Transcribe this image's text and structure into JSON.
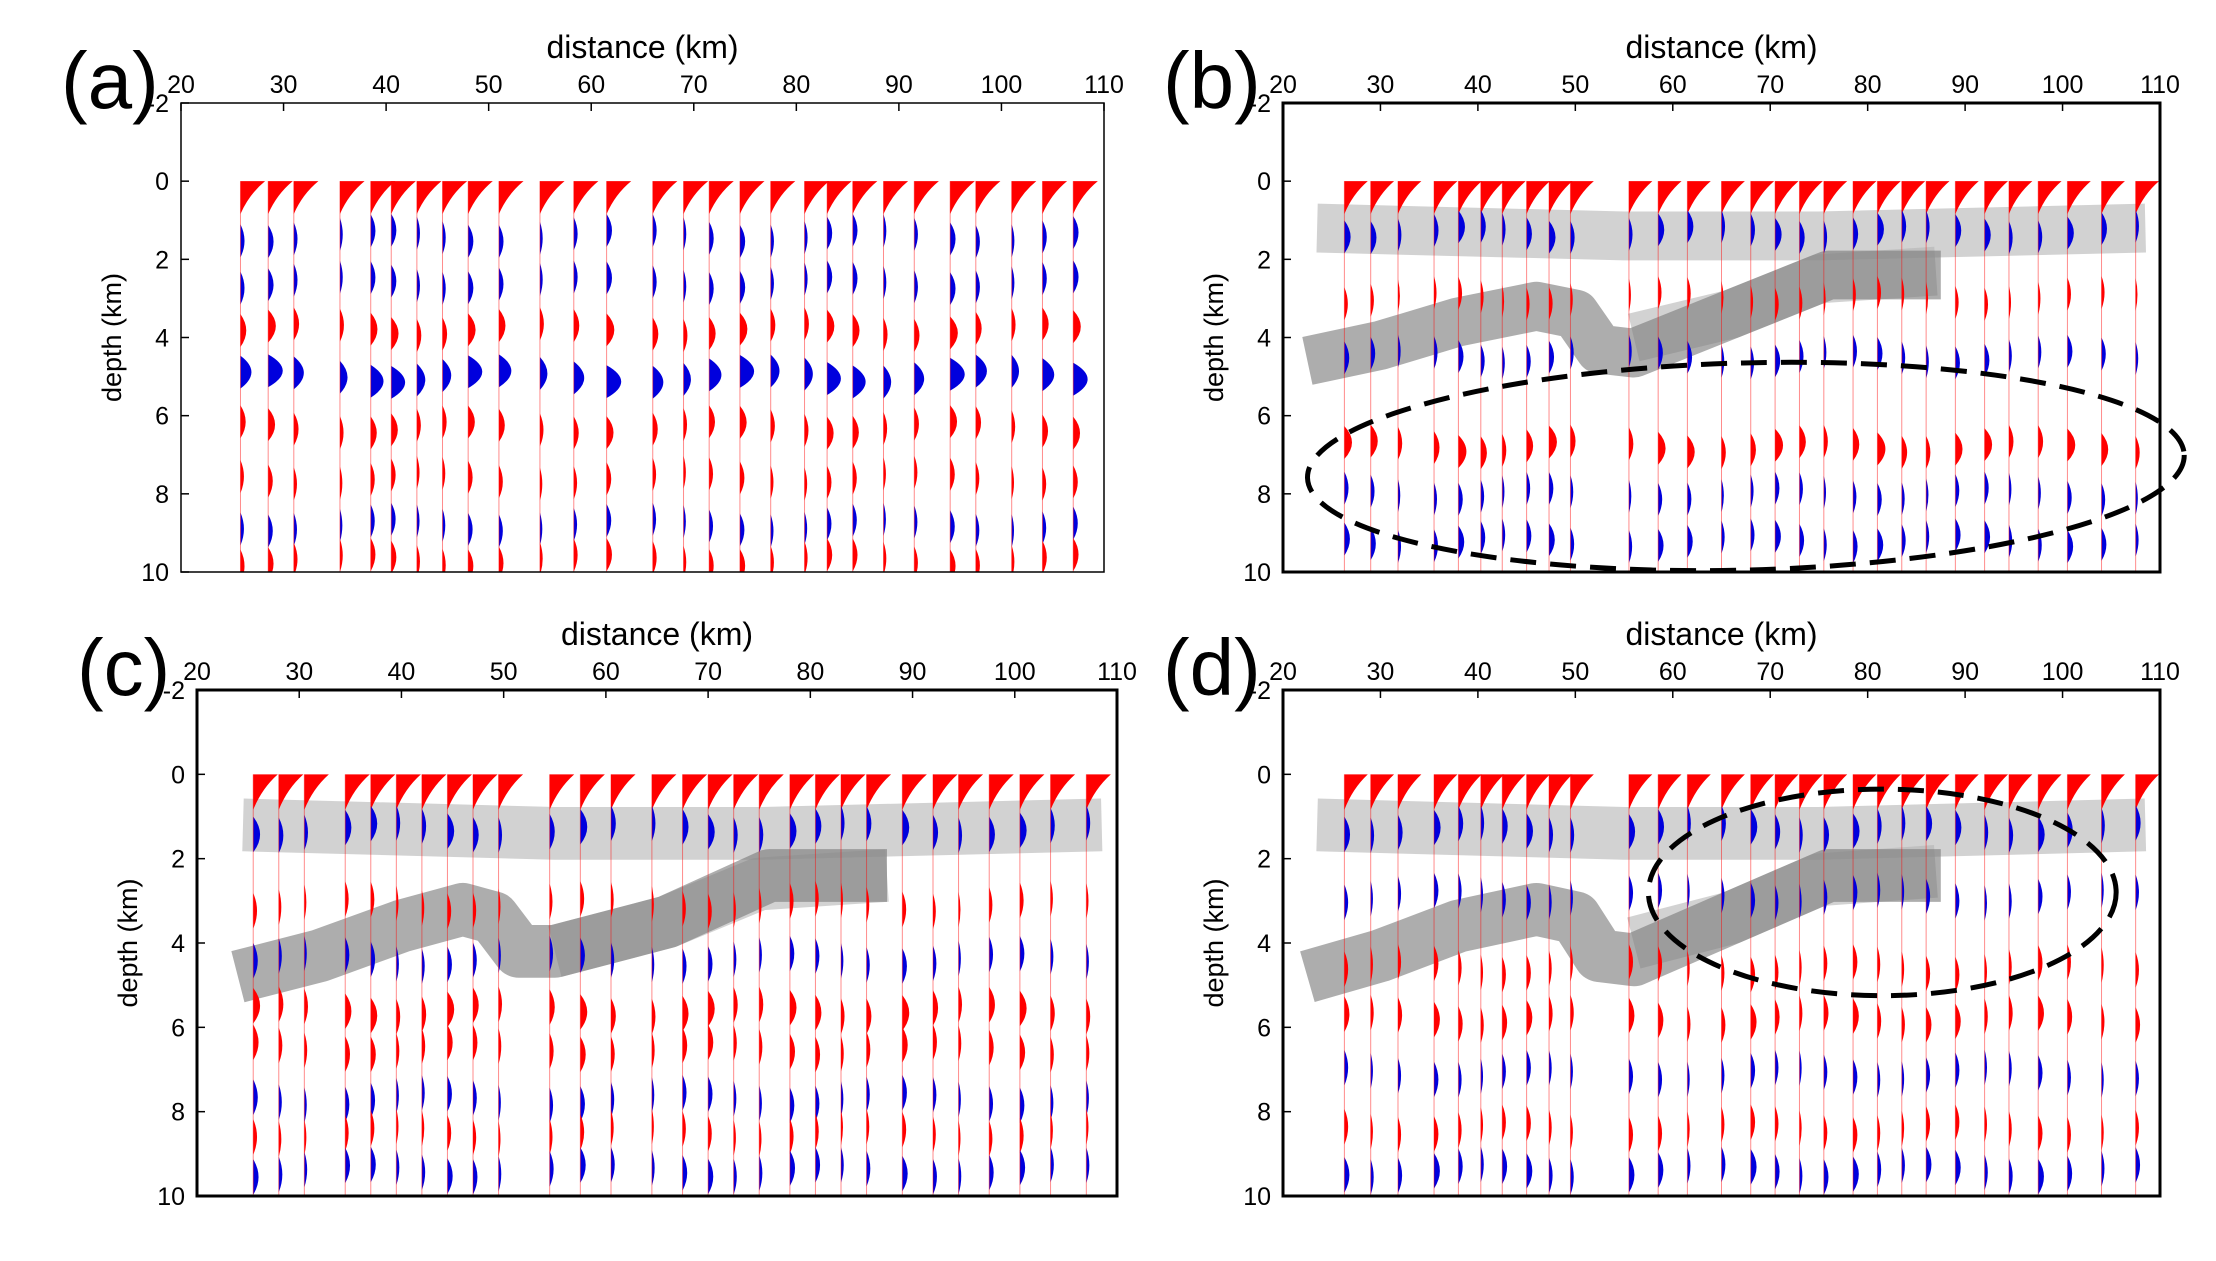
{
  "colors": {
    "positive": "#ff0000",
    "negative": "#0000dd",
    "band_light": "#b4b4b4",
    "band_dark": "#7a7a7a",
    "ellipse": "#000000",
    "axes": "#000000"
  },
  "chart_data": [
    {
      "type": "wiggle",
      "panel_label": "(a)",
      "xlabel": "distance (km)",
      "ylabel": "depth (km)",
      "xlim": [
        20,
        110
      ],
      "ylim": [
        -2,
        10
      ],
      "y_reversed": true,
      "x_ticks": [
        "20",
        "30",
        "40",
        "50",
        "60",
        "70",
        "80",
        "90",
        "100",
        "110"
      ],
      "y_ticks": [
        "-2",
        "0",
        "2",
        "4",
        "6",
        "8",
        "10"
      ],
      "traces_x": [
        25.8,
        28.5,
        31,
        35.5,
        38.5,
        40.5,
        43,
        45.5,
        48,
        51,
        55,
        58.3,
        61.5,
        66,
        69,
        71.5,
        74.5,
        77.5,
        80.8,
        83,
        85.5,
        88.5,
        91.5,
        95,
        97.5,
        101,
        104,
        107
      ],
      "events": [
        {
          "depth": 0.4,
          "amp": 1.0,
          "sign": "positive"
        },
        {
          "depth": 1.4,
          "amp": 0.35,
          "sign": "negative"
        },
        {
          "depth": 2.6,
          "amp": 0.35,
          "sign": "negative"
        },
        {
          "depth": 3.8,
          "amp": 0.5,
          "sign": "positive"
        },
        {
          "depth": 5.0,
          "amp": 0.95,
          "sign": "negative"
        },
        {
          "depth": 6.3,
          "amp": 0.45,
          "sign": "positive"
        },
        {
          "depth": 7.6,
          "amp": 0.3,
          "sign": "positive"
        },
        {
          "depth": 8.8,
          "amp": 0.3,
          "sign": "negative"
        },
        {
          "depth": 9.7,
          "amp": 0.35,
          "sign": "positive"
        }
      ],
      "bands": [],
      "ellipses": []
    },
    {
      "type": "wiggle",
      "panel_label": "(b)",
      "xlabel": "distance (km)",
      "ylabel": "depth (km)",
      "xlim": [
        20,
        110
      ],
      "ylim": [
        -2,
        10
      ],
      "y_reversed": true,
      "x_ticks": [
        "20",
        "30",
        "40",
        "50",
        "60",
        "70",
        "80",
        "90",
        "100",
        "110"
      ],
      "y_ticks": [
        "-2",
        "0",
        "2",
        "4",
        "6",
        "8",
        "10"
      ],
      "traces_x": [
        26.3,
        29,
        31.8,
        35.5,
        38,
        40.3,
        42.5,
        45,
        47.3,
        49.5,
        55.5,
        58.5,
        61.5,
        65,
        68,
        70.5,
        73,
        75.5,
        78.5,
        81,
        83.5,
        86,
        89,
        92,
        94.5,
        97.5,
        100.5,
        104,
        107.5
      ],
      "events": [
        {
          "depth": 0.4,
          "amp": 1.0,
          "sign": "positive"
        },
        {
          "depth": 1.3,
          "amp": 0.45,
          "sign": "negative"
        },
        {
          "depth": 3.0,
          "amp": 0.25,
          "sign": "positive"
        },
        {
          "depth": 4.5,
          "amp": 0.35,
          "sign": "negative"
        },
        {
          "depth": 6.8,
          "amp": 0.55,
          "sign": "positive"
        },
        {
          "depth": 8.0,
          "amp": 0.3,
          "sign": "negative"
        },
        {
          "depth": 9.2,
          "amp": 0.4,
          "sign": "negative"
        }
      ],
      "bands": [
        {
          "tone": "light",
          "points": [
            [
              23.5,
              1.2
            ],
            [
              55,
              1.4
            ],
            [
              75,
              1.4
            ],
            [
              108.5,
              1.2
            ]
          ]
        },
        {
          "tone": "light",
          "points": [
            [
              56,
              4.0
            ],
            [
              66,
              3.4
            ],
            [
              75,
              2.5
            ],
            [
              87,
              2.3
            ]
          ]
        },
        {
          "tone": "dark",
          "points": [
            [
              22.5,
              4.6
            ],
            [
              30,
              4.2
            ],
            [
              38,
              3.6
            ],
            [
              46,
              3.2
            ],
            [
              50,
              3.4
            ],
            [
              52.5,
              4.3
            ],
            [
              56,
              4.4
            ],
            [
              66,
              3.4
            ],
            [
              76,
              2.4
            ],
            [
              87.5,
              2.4
            ]
          ]
        }
      ],
      "ellipses": [
        {
          "cx": 67.5,
          "cy": 7.3,
          "rx": 45,
          "ry": 2.65,
          "rot": -1.5
        }
      ]
    },
    {
      "type": "wiggle",
      "panel_label": "(c)",
      "xlabel": "distance (km)",
      "ylabel": "depth (km)",
      "xlim": [
        20,
        110
      ],
      "ylim": [
        -2,
        10
      ],
      "y_reversed": true,
      "x_ticks": [
        "20",
        "30",
        "40",
        "50",
        "60",
        "70",
        "80",
        "90",
        "100",
        "110"
      ],
      "y_ticks": [
        "-2",
        "0",
        "2",
        "4",
        "6",
        "8",
        "10"
      ],
      "traces_x": [
        25.5,
        28,
        30.5,
        34.5,
        37,
        39.5,
        42,
        44.5,
        47,
        49.5,
        54.5,
        57.5,
        60.5,
        64.5,
        67.5,
        70,
        72.5,
        75,
        78,
        80.5,
        83,
        85.5,
        89,
        92,
        94.5,
        97.5,
        100.5,
        103.5,
        107
      ],
      "events": [
        {
          "depth": 0.4,
          "amp": 1.0,
          "sign": "positive"
        },
        {
          "depth": 1.3,
          "amp": 0.45,
          "sign": "negative"
        },
        {
          "depth": 3.1,
          "amp": 0.25,
          "sign": "positive"
        },
        {
          "depth": 4.4,
          "amp": 0.3,
          "sign": "negative"
        },
        {
          "depth": 5.6,
          "amp": 0.45,
          "sign": "positive"
        },
        {
          "depth": 6.5,
          "amp": 0.35,
          "sign": "positive"
        },
        {
          "depth": 7.7,
          "amp": 0.3,
          "sign": "negative"
        },
        {
          "depth": 8.5,
          "amp": 0.25,
          "sign": "positive"
        },
        {
          "depth": 9.4,
          "amp": 0.35,
          "sign": "negative"
        }
      ],
      "bands": [
        {
          "tone": "light",
          "points": [
            [
              24.5,
              1.2
            ],
            [
              55,
              1.4
            ],
            [
              75,
              1.4
            ],
            [
              108.5,
              1.2
            ]
          ]
        },
        {
          "tone": "light",
          "points": [
            [
              55,
              4.2
            ],
            [
              66,
              3.5
            ],
            [
              75,
              2.6
            ],
            [
              87.5,
              2.4
            ]
          ]
        },
        {
          "tone": "dark",
          "points": [
            [
              24,
              4.8
            ],
            [
              32,
              4.3
            ],
            [
              40,
              3.6
            ],
            [
              46,
              3.2
            ],
            [
              49,
              3.4
            ],
            [
              51.5,
              4.2
            ],
            [
              55,
              4.2
            ],
            [
              66,
              3.5
            ],
            [
              76,
              2.4
            ],
            [
              87.5,
              2.4
            ]
          ]
        }
      ],
      "ellipses": []
    },
    {
      "type": "wiggle",
      "panel_label": "(d)",
      "xlabel": "distance (km)",
      "ylabel": "depth (km)",
      "xlim": [
        20,
        110
      ],
      "ylim": [
        -2,
        10
      ],
      "y_reversed": true,
      "x_ticks": [
        "20",
        "30",
        "40",
        "50",
        "60",
        "70",
        "80",
        "90",
        "100",
        "110"
      ],
      "y_ticks": [
        "-2",
        "0",
        "2",
        "4",
        "6",
        "8",
        "10"
      ],
      "traces_x": [
        26.3,
        29,
        31.8,
        35.5,
        38,
        40.3,
        42.5,
        45,
        47.3,
        49.5,
        55.5,
        58.5,
        61.5,
        65,
        68,
        70.5,
        73,
        75.5,
        78.5,
        81,
        83.5,
        86,
        89,
        92,
        94.5,
        97.5,
        100.5,
        104,
        107.5
      ],
      "events": [
        {
          "depth": 0.4,
          "amp": 1.0,
          "sign": "positive"
        },
        {
          "depth": 1.3,
          "amp": 0.45,
          "sign": "negative"
        },
        {
          "depth": 2.9,
          "amp": 0.3,
          "sign": "negative"
        },
        {
          "depth": 4.6,
          "amp": 0.3,
          "sign": "positive"
        },
        {
          "depth": 5.8,
          "amp": 0.4,
          "sign": "positive"
        },
        {
          "depth": 7.1,
          "amp": 0.3,
          "sign": "negative"
        },
        {
          "depth": 8.4,
          "amp": 0.3,
          "sign": "positive"
        },
        {
          "depth": 9.4,
          "amp": 0.4,
          "sign": "negative"
        }
      ],
      "bands": [
        {
          "tone": "light",
          "points": [
            [
              23.5,
              1.2
            ],
            [
              55,
              1.4
            ],
            [
              75,
              1.4
            ],
            [
              108.5,
              1.2
            ]
          ]
        },
        {
          "tone": "light",
          "points": [
            [
              56,
              4.0
            ],
            [
              66,
              3.4
            ],
            [
              75,
              2.5
            ],
            [
              87,
              2.3
            ]
          ]
        },
        {
          "tone": "dark",
          "points": [
            [
              22.5,
              4.8
            ],
            [
              30,
              4.3
            ],
            [
              38,
              3.6
            ],
            [
              46,
              3.2
            ],
            [
              50,
              3.4
            ],
            [
              52.5,
              4.3
            ],
            [
              56,
              4.4
            ],
            [
              66,
              3.4
            ],
            [
              76,
              2.4
            ],
            [
              87.5,
              2.4
            ]
          ]
        }
      ],
      "ellipses": [
        {
          "cx": 81.5,
          "cy": 2.8,
          "rx": 24,
          "ry": 2.45,
          "rot": 0
        }
      ]
    }
  ]
}
